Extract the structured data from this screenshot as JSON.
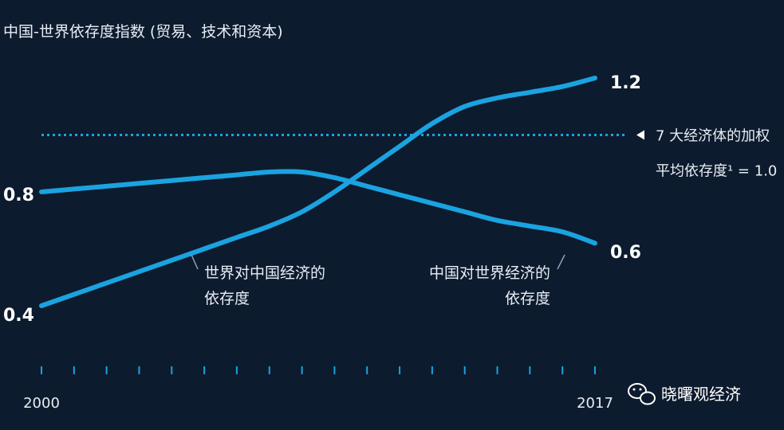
{
  "chart_data": {
    "type": "line",
    "title": "中国-世界依存度指数 (贸易、技术和资本)",
    "x_start_label": "2000",
    "x_end_label": "2017",
    "x": [
      2000,
      2001,
      2002,
      2003,
      2004,
      2005,
      2006,
      2007,
      2008,
      2009,
      2010,
      2011,
      2012,
      2013,
      2014,
      2015,
      2016,
      2017
    ],
    "ylim": [
      0.3,
      1.35
    ],
    "y_tick_labels": [
      {
        "value": 0.8,
        "label": "0.8"
      },
      {
        "value": 0.4,
        "label": "0.4"
      }
    ],
    "series": [
      {
        "key": "world_on_china",
        "values": [
          0.4,
          0.44,
          0.48,
          0.52,
          0.56,
          0.6,
          0.64,
          0.68,
          0.73,
          0.8,
          0.88,
          0.96,
          1.04,
          1.1,
          1.13,
          1.15,
          1.17,
          1.2
        ],
        "end_label": "1.2",
        "annotation_lines": [
          "世界对中国经济的",
          "依存度"
        ]
      },
      {
        "key": "china_on_world",
        "values": [
          0.8,
          0.81,
          0.82,
          0.83,
          0.84,
          0.85,
          0.86,
          0.87,
          0.87,
          0.85,
          0.82,
          0.79,
          0.76,
          0.73,
          0.7,
          0.68,
          0.66,
          0.62
        ],
        "end_label": "0.6",
        "annotation_lines": [
          "中国对世界经济的",
          "依存度"
        ]
      }
    ],
    "reference_line": {
      "value": 1.0,
      "label_lines": [
        "7 大经济体的加权",
        "平均依存度¹ = 1.0"
      ]
    }
  },
  "colors": {
    "background": "#0d1b2e",
    "line": "#1aa3e0",
    "reference": "#1aa3e0",
    "text": "#e8edf3"
  },
  "watermark": {
    "icon": "wechat-icon",
    "text": "晓曙观经济"
  }
}
